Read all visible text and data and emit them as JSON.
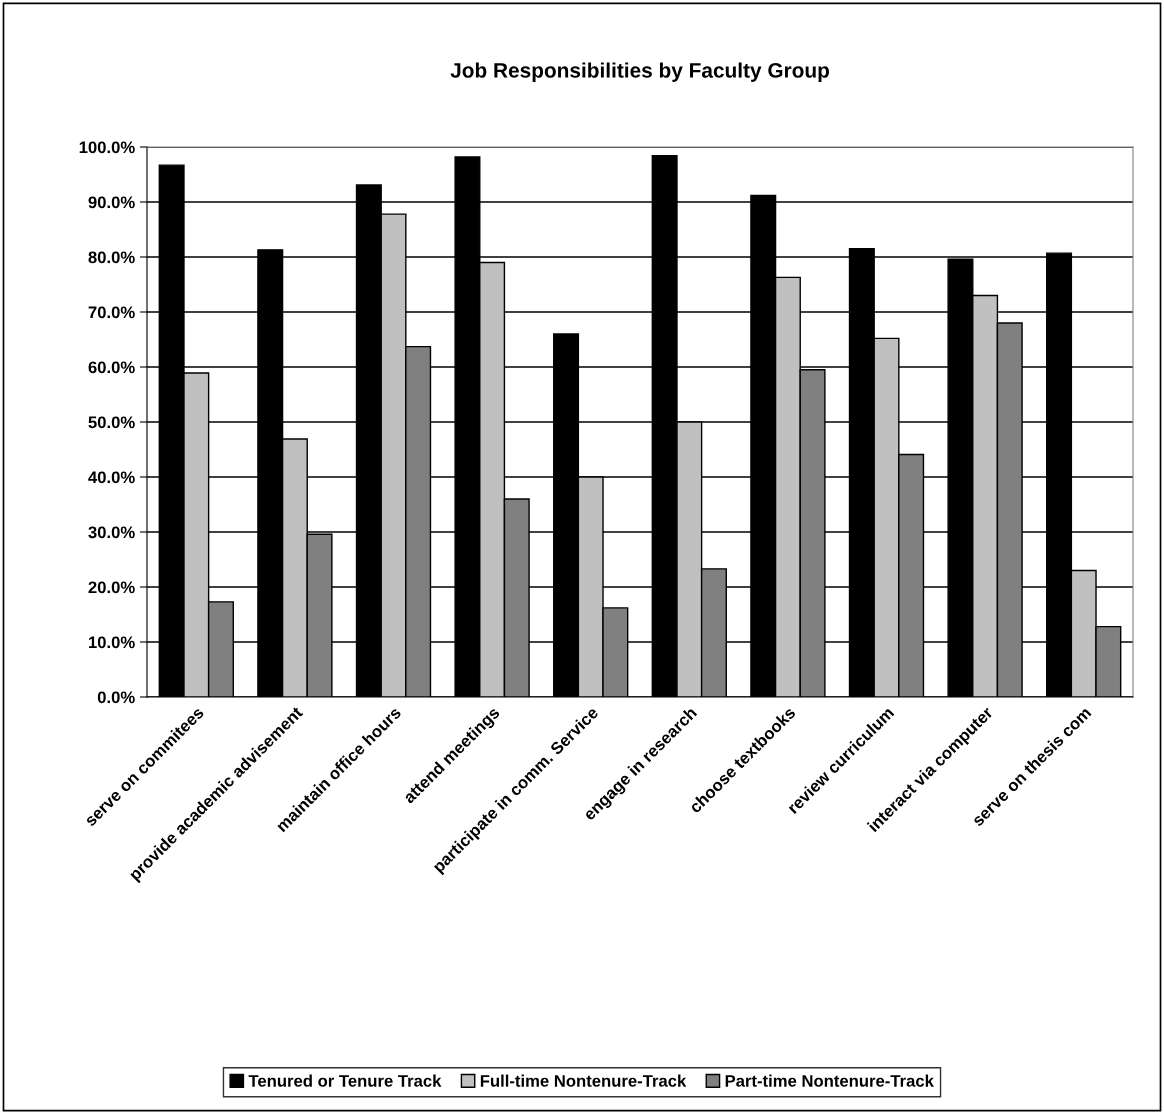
{
  "chart_data": {
    "type": "bar",
    "title": "Job Responsibilities by Faculty Group",
    "categories": [
      "serve on commitees",
      "provide academic advisement",
      "maintain office hours",
      "attend meetings",
      "participate in comm. Service",
      "engage in research",
      "choose textbooks",
      "review curriculum",
      "interact via computer",
      "serve on thesis com"
    ],
    "series": [
      {
        "name": "Tenured or Tenure Track",
        "color": "#000000",
        "values": [
          96.7,
          81.3,
          93.1,
          98.2,
          66.0,
          98.4,
          91.2,
          81.5,
          79.6,
          80.7
        ]
      },
      {
        "name": "Full-time Nontenure-Track",
        "color": "#c0c0c0",
        "values": [
          58.9,
          46.9,
          87.8,
          79.0,
          40.0,
          50.0,
          76.3,
          65.2,
          73.0,
          23.0
        ]
      },
      {
        "name": "Part-time Nontenure-Track",
        "color": "#808080",
        "values": [
          17.3,
          29.6,
          63.7,
          36.0,
          16.2,
          23.3,
          59.5,
          44.1,
          68.0,
          12.8
        ]
      }
    ],
    "ylim": [
      0,
      100
    ],
    "yticks": [
      {
        "value": 0,
        "label": "0.0%"
      },
      {
        "value": 10,
        "label": "10.0%"
      },
      {
        "value": 20,
        "label": "20.0%"
      },
      {
        "value": 30,
        "label": "30.0%"
      },
      {
        "value": 40,
        "label": "40.0%"
      },
      {
        "value": 50,
        "label": "50.0%"
      },
      {
        "value": 60,
        "label": "60.0%"
      },
      {
        "value": 70,
        "label": "70.0%"
      },
      {
        "value": 80,
        "label": "80.0%"
      },
      {
        "value": 90,
        "label": "90.0%"
      },
      {
        "value": 100,
        "label": "100.0%"
      }
    ],
    "grid": "y",
    "legend": "bottom"
  }
}
